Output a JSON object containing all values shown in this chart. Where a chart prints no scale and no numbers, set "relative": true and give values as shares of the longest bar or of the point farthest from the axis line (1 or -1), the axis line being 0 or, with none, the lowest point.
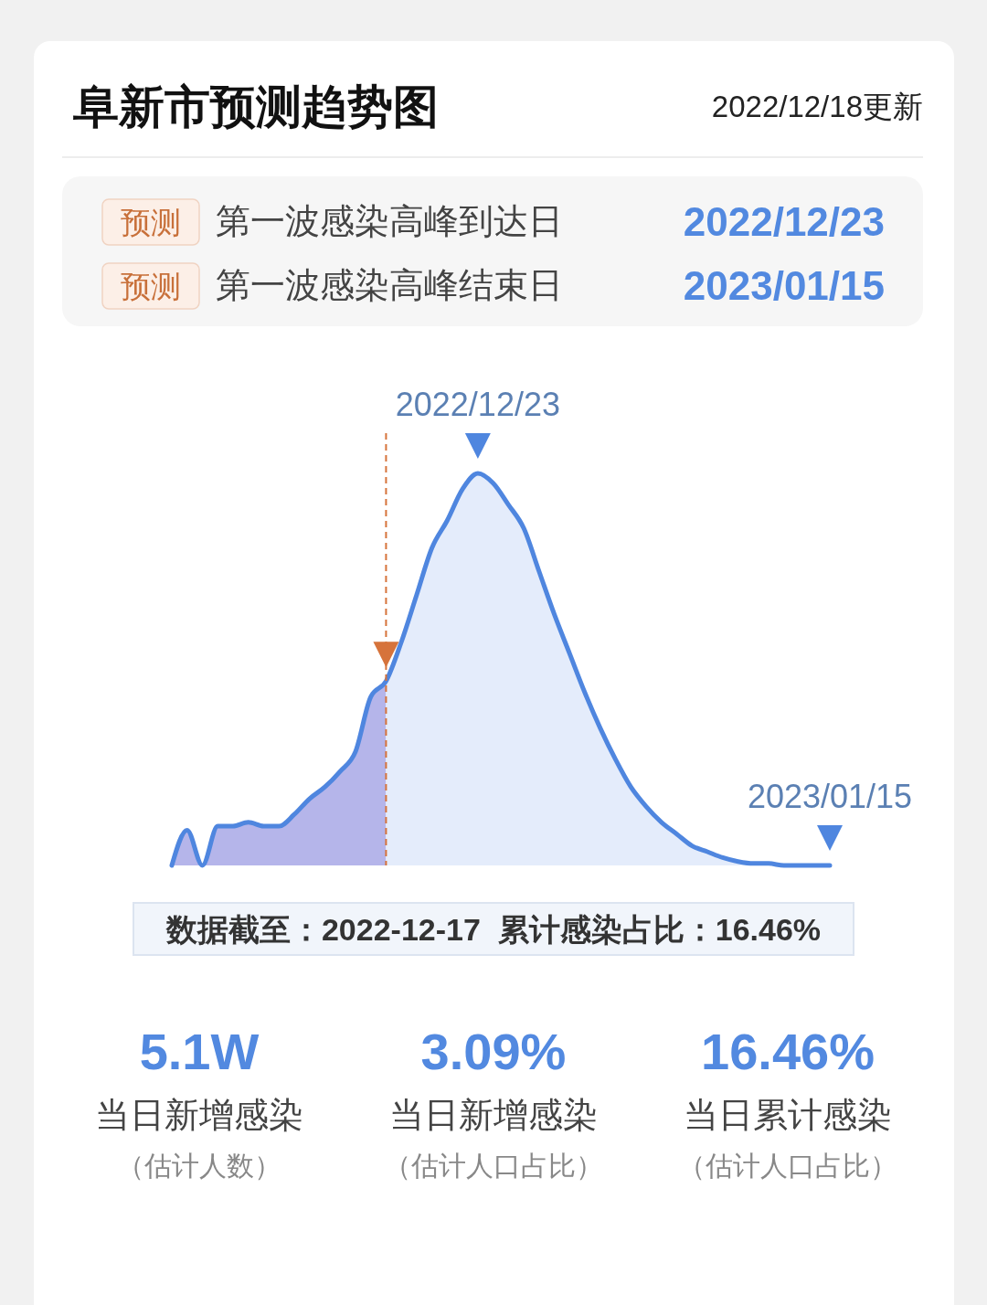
{
  "chart_data": {
    "type": "area",
    "title": "阜新市预测趋势图",
    "subtitle": "2022/12/18更新",
    "relative": true,
    "categories": [
      null,
      null,
      null,
      null,
      null,
      null,
      null,
      null,
      null,
      null,
      null,
      null,
      null,
      null,
      null,
      null,
      null,
      null,
      null,
      null,
      null,
      null,
      null,
      null,
      null,
      null,
      null,
      null,
      null,
      null,
      null,
      null,
      null,
      null,
      null,
      null,
      null,
      null,
      null,
      null,
      null,
      null,
      null,
      null
    ],
    "series": [
      {
        "color": "#b5b5ea",
        "values": [
          0,
          0.09,
          0,
          0.1,
          0.1,
          0.11,
          0.1,
          0.1,
          0.13,
          0.17,
          0.2,
          0.24,
          0.29,
          0.43,
          0.47,
          null,
          null,
          null,
          null,
          null,
          null,
          null,
          null,
          null,
          null,
          null,
          null,
          null,
          null,
          null,
          null,
          null,
          null,
          null,
          null,
          null,
          null,
          null,
          null,
          null,
          null,
          null,
          null,
          null
        ]
      },
      {
        "color": "#e4ecfb",
        "values": [
          null,
          null,
          null,
          null,
          null,
          null,
          null,
          null,
          null,
          null,
          null,
          null,
          null,
          null,
          0.47,
          0.57,
          0.69,
          0.81,
          0.88,
          0.96,
          1,
          0.975,
          0.92,
          0.86,
          0.75,
          0.64,
          0.54,
          0.44,
          0.35,
          0.27,
          0.2,
          0.15,
          0.11,
          0.08,
          0.05,
          0.035,
          0.02,
          0.01,
          0.005,
          0.005,
          0,
          0,
          0,
          0
        ]
      },
      {
        "type": "line",
        "color": "#4f86df",
        "values": [
          0,
          0.09,
          0,
          0.1,
          0.1,
          0.11,
          0.1,
          0.1,
          0.13,
          0.17,
          0.2,
          0.24,
          0.29,
          0.43,
          0.47,
          0.57,
          0.69,
          0.81,
          0.88,
          0.96,
          1,
          0.975,
          0.92,
          0.86,
          0.75,
          0.64,
          0.54,
          0.44,
          0.35,
          0.27,
          0.2,
          0.15,
          0.11,
          0.08,
          0.05,
          0.035,
          0.02,
          0.01,
          0.005,
          0.005,
          0,
          0,
          0,
          0
        ]
      }
    ],
    "annotations": [
      "预测",
      "第一波感染高峰到达日",
      "2022/12/23",
      "预测",
      "第一波感染高峰结束日",
      "2023/01/15",
      {
        "text": "2022/12/23",
        "y": 1
      },
      "2023/01/15",
      "数据截至：2022-12-17  累计感染占比：16.46%",
      "5.1W",
      "当日新增感染",
      "（估计人数）",
      "3.09%",
      "当日新增感染",
      "（估计人口占比）",
      "16.46%",
      "当日累计感染",
      "（估计人口占比）"
    ]
  }
}
